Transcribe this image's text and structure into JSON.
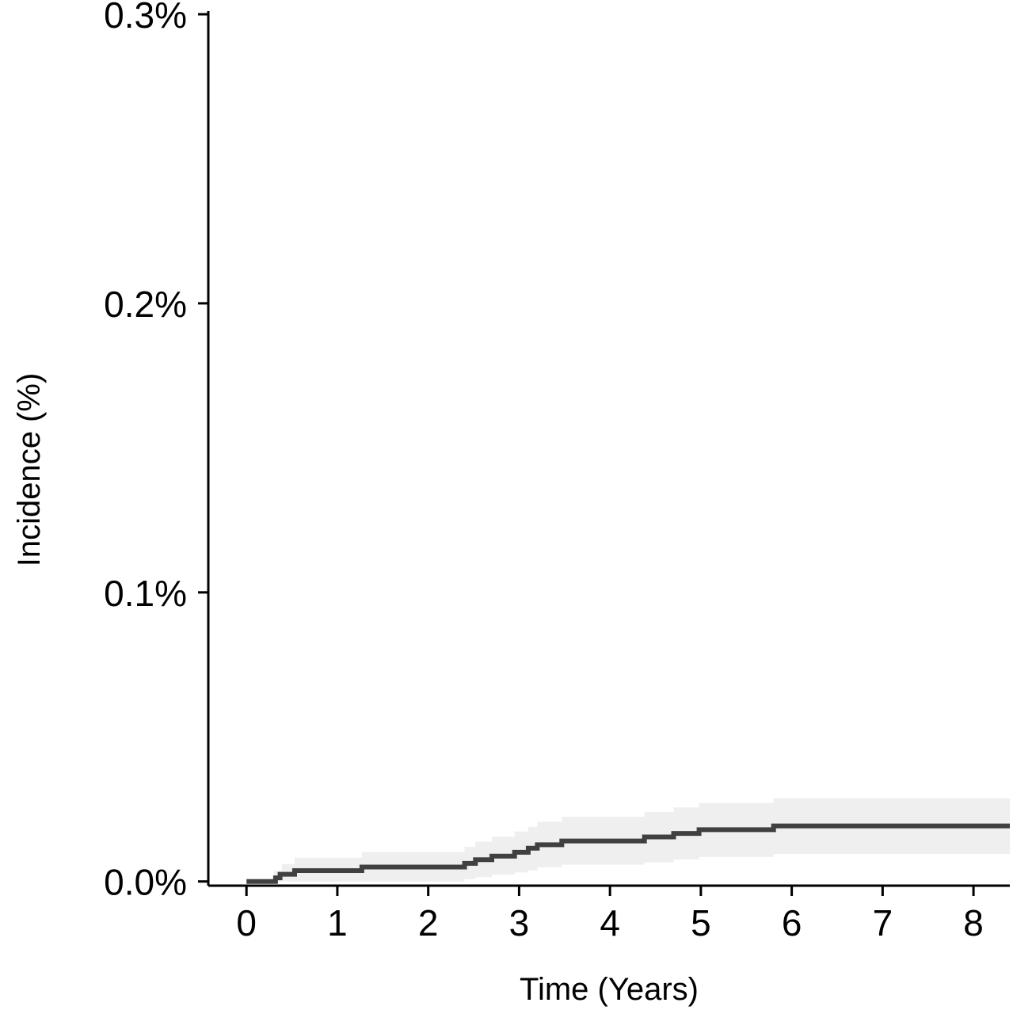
{
  "chart_data": {
    "type": "line",
    "step": true,
    "title": "",
    "xlabel": "Time (Years)",
    "ylabel": "Incidence (%)",
    "xlim": [
      -0.42,
      8.4
    ],
    "ylim": [
      -1.45e-05,
      0.003
    ],
    "grid": false,
    "x_ticks": [
      0,
      1,
      2,
      3,
      4,
      5,
      6,
      7,
      8
    ],
    "x_tick_labels": [
      "0",
      "1",
      "2",
      "3",
      "4",
      "5",
      "6",
      "7",
      "8"
    ],
    "y_ticks": [
      0.0,
      0.001,
      0.002,
      0.003
    ],
    "y_tick_labels": [
      "0.0%",
      "0.1%",
      "0.2%",
      "0.3%"
    ],
    "colors": {
      "line": "#404040",
      "band": "#efefef",
      "axis": "#000000"
    },
    "series": [
      {
        "x": [
          0,
          0.32,
          0.37,
          0.53,
          1.27,
          2.4,
          2.52,
          2.7,
          2.95,
          3.1,
          3.2,
          3.47,
          4.38,
          4.7,
          4.98,
          5.8,
          8.4
        ],
        "y": [
          0,
          1.25e-05,
          2.5e-05,
          3.75e-05,
          5e-05,
          6.25e-05,
          7.5e-05,
          8.75e-05,
          0.000101,
          0.000115,
          0.000127,
          0.00014,
          0.000154,
          0.000166,
          0.000179,
          0.000192,
          0.000192
        ]
      }
    ],
    "confidence_band": {
      "x": [
        0.3,
        0.39,
        0.53,
        1.27,
        2.4,
        2.52,
        2.7,
        2.95,
        3.1,
        3.2,
        3.47,
        4.38,
        4.7,
        4.98,
        5.8,
        8.4
      ],
      "lower": [
        0,
        0,
        0,
        0,
        8e-06,
        1.5e-05,
        2.3e-05,
        3.1e-05,
        3.8e-05,
        4.9e-05,
        5.8e-05,
        6.6e-05,
        7.6e-05,
        8.5e-05,
        9.5e-05,
        9.5e-05
      ],
      "upper": [
        3.7e-05,
        6e-05,
        8.2e-05,
        0.000102,
        0.00012,
        0.000138,
        0.000155,
        0.000173,
        0.000189,
        0.000207,
        0.000224,
        0.00024,
        0.000256,
        0.000272,
        0.000288,
        0.000288
      ]
    }
  }
}
